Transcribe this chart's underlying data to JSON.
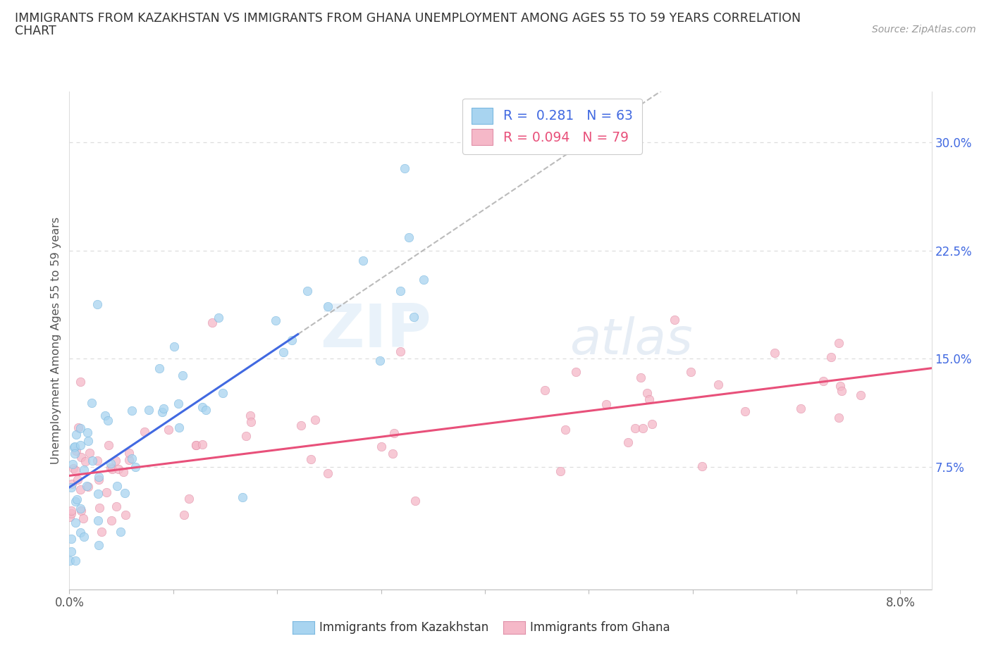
{
  "title_line1": "IMMIGRANTS FROM KAZAKHSTAN VS IMMIGRANTS FROM GHANA UNEMPLOYMENT AMONG AGES 55 TO 59 YEARS CORRELATION",
  "title_line2": "CHART",
  "source_text": "Source: ZipAtlas.com",
  "ylabel": "Unemployment Among Ages 55 to 59 years",
  "legend_label_kaz": "Immigrants from Kazakhstan",
  "legend_label_gha": "Immigrants from Ghana",
  "R_kaz": 0.281,
  "N_kaz": 63,
  "R_gha": 0.094,
  "N_gha": 79,
  "color_kaz": "#a8d4f0",
  "color_kaz_edge": "#7ab8e0",
  "color_kaz_dark": "#4169E1",
  "color_gha": "#f5b8c8",
  "color_gha_edge": "#e090a8",
  "color_gha_dark": "#e8507a",
  "xlim": [
    0.0,
    0.083
  ],
  "ylim": [
    -0.01,
    0.335
  ],
  "yticks_right": [
    0.075,
    0.15,
    0.225,
    0.3
  ],
  "yticklabels_right": [
    "7.5%",
    "15.0%",
    "22.5%",
    "30.0%"
  ],
  "watermark_zip": "ZIP",
  "watermark_atlas": "atlas",
  "grid_color": "#dddddd"
}
